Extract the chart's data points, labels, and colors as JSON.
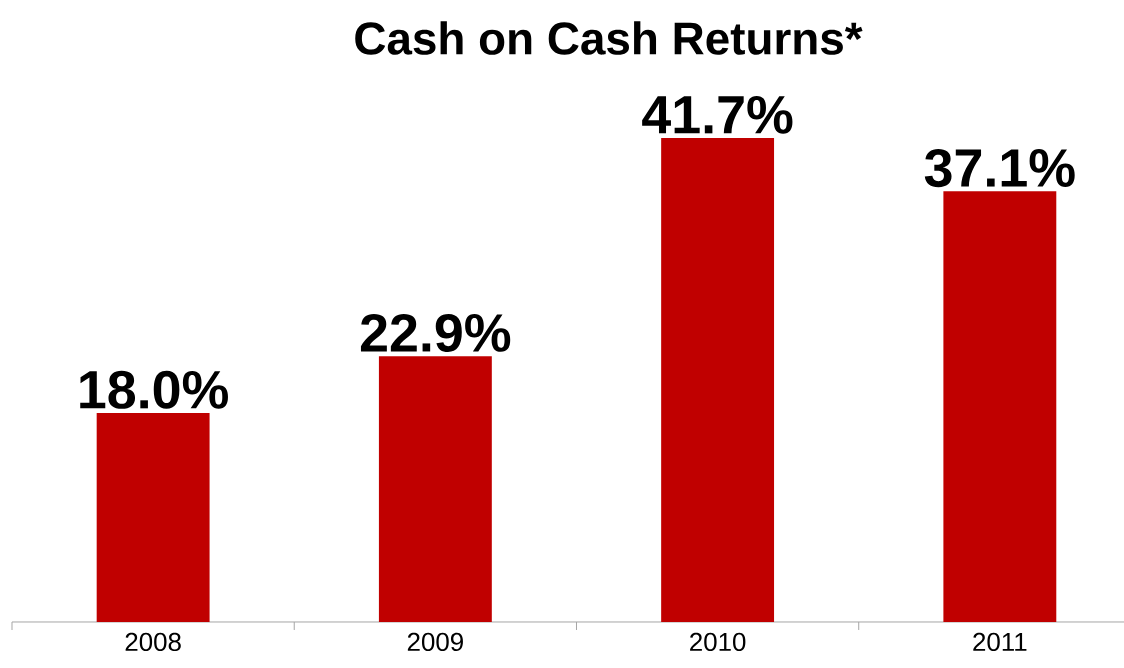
{
  "chart_data": {
    "type": "bar",
    "title": "Cash on Cash Returns*",
    "categories": [
      "2008",
      "2009",
      "2010",
      "2011"
    ],
    "values": [
      18.0,
      22.9,
      41.7,
      37.1
    ],
    "value_labels": [
      "18.0%",
      "22.9%",
      "41.7%",
      "37.1%"
    ],
    "color": "#c00000"
  }
}
